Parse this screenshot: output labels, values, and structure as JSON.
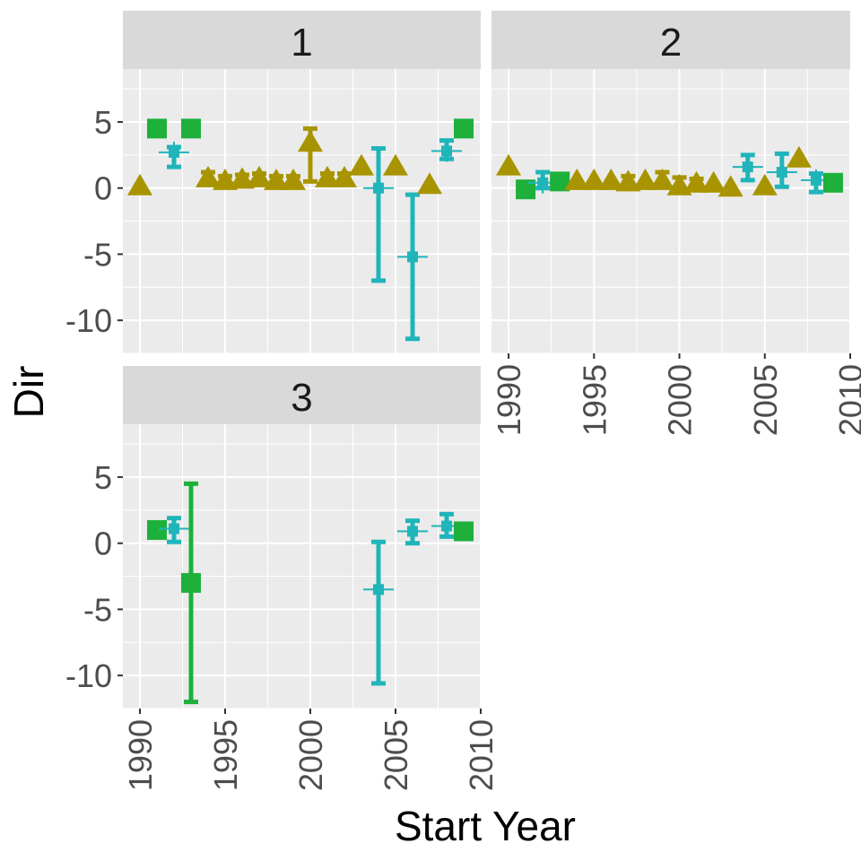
{
  "chart_data": {
    "type": "scatter",
    "subtype": "faceted point-range plot",
    "xlabel": "Start Year",
    "ylabel": "Dir",
    "xlim": [
      1989,
      2010
    ],
    "ylim": [
      -12.5,
      9
    ],
    "x_ticks": [
      1990,
      1995,
      2000,
      2005,
      2010
    ],
    "y_ticks": [
      5,
      0,
      -5,
      -10
    ],
    "grid": true,
    "shared_axes": true,
    "colors": {
      "triangle": "#A89400",
      "cross": "#1FB5BA",
      "square": "#1DB03B"
    },
    "panels": [
      {
        "strip_label": "1",
        "points": [
          {
            "x": 1990,
            "y": 0.2,
            "shape": "triangle"
          },
          {
            "x": 1991,
            "y": 4.5,
            "shape": "square"
          },
          {
            "x": 1992,
            "y": 2.7,
            "ymin": 1.6,
            "ymax": 3.1,
            "shape": "cross"
          },
          {
            "x": 1993,
            "y": 4.5,
            "shape": "square"
          },
          {
            "x": 1994,
            "y": 0.8,
            "ymin": 0.4,
            "ymax": 1.2,
            "shape": "triangle"
          },
          {
            "x": 1995,
            "y": 0.6,
            "ymin": 0.3,
            "ymax": 0.9,
            "shape": "triangle"
          },
          {
            "x": 1996,
            "y": 0.7,
            "ymin": 0.4,
            "ymax": 1.0,
            "shape": "triangle"
          },
          {
            "x": 1997,
            "y": 0.8,
            "ymin": 0.5,
            "ymax": 1.1,
            "shape": "triangle"
          },
          {
            "x": 1998,
            "y": 0.6,
            "ymin": 0.3,
            "ymax": 0.9,
            "shape": "triangle"
          },
          {
            "x": 1999,
            "y": 0.6,
            "ymin": 0.3,
            "ymax": 0.9,
            "shape": "triangle"
          },
          {
            "x": 2000,
            "y": 3.5,
            "ymin": 0.5,
            "ymax": 4.5,
            "shape": "triangle"
          },
          {
            "x": 2001,
            "y": 0.8,
            "ymin": 0.5,
            "ymax": 1.1,
            "shape": "triangle"
          },
          {
            "x": 2002,
            "y": 0.8,
            "ymin": 0.5,
            "ymax": 1.1,
            "shape": "triangle"
          },
          {
            "x": 2003,
            "y": 1.7,
            "shape": "triangle"
          },
          {
            "x": 2004,
            "y": 0.0,
            "ymin": -7.0,
            "ymax": 3.0,
            "shape": "cross"
          },
          {
            "x": 2005,
            "y": 1.7,
            "shape": "triangle"
          },
          {
            "x": 2006,
            "y": -5.2,
            "ymin": -11.4,
            "ymax": -0.5,
            "shape": "cross"
          },
          {
            "x": 2007,
            "y": 0.3,
            "shape": "triangle"
          },
          {
            "x": 2008,
            "y": 2.8,
            "ymin": 2.2,
            "ymax": 3.6,
            "shape": "cross"
          },
          {
            "x": 2009,
            "y": 4.5,
            "shape": "square"
          }
        ]
      },
      {
        "strip_label": "2",
        "points": [
          {
            "x": 1990,
            "y": 1.7,
            "shape": "triangle"
          },
          {
            "x": 1991,
            "y": -0.1,
            "ymin": -0.5,
            "ymax": 0.3,
            "shape": "square"
          },
          {
            "x": 1992,
            "y": 0.4,
            "ymin": 0.0,
            "ymax": 1.2,
            "shape": "cross"
          },
          {
            "x": 1993,
            "y": 0.5,
            "shape": "square"
          },
          {
            "x": 1994,
            "y": 0.6,
            "shape": "triangle"
          },
          {
            "x": 1995,
            "y": 0.6,
            "shape": "triangle"
          },
          {
            "x": 1996,
            "y": 0.6,
            "shape": "triangle"
          },
          {
            "x": 1997,
            "y": 0.5,
            "ymin": 0.1,
            "ymax": 0.9,
            "shape": "triangle"
          },
          {
            "x": 1998,
            "y": 0.6,
            "shape": "triangle"
          },
          {
            "x": 1999,
            "y": 0.6,
            "ymin": 0.1,
            "ymax": 1.2,
            "shape": "triangle"
          },
          {
            "x": 2000,
            "y": 0.2,
            "ymin": -0.3,
            "ymax": 0.8,
            "shape": "triangle"
          },
          {
            "x": 2001,
            "y": 0.4,
            "ymin": 0.1,
            "ymax": 0.7,
            "shape": "triangle"
          },
          {
            "x": 2002,
            "y": 0.4,
            "shape": "triangle"
          },
          {
            "x": 2003,
            "y": 0.1,
            "shape": "triangle"
          },
          {
            "x": 2004,
            "y": 1.6,
            "ymin": 0.6,
            "ymax": 2.5,
            "shape": "cross"
          },
          {
            "x": 2005,
            "y": 0.2,
            "shape": "triangle"
          },
          {
            "x": 2006,
            "y": 1.2,
            "ymin": 0.1,
            "ymax": 2.6,
            "shape": "cross"
          },
          {
            "x": 2007,
            "y": 2.3,
            "shape": "triangle"
          },
          {
            "x": 2008,
            "y": 0.6,
            "ymin": -0.3,
            "ymax": 1.1,
            "shape": "cross"
          },
          {
            "x": 2009,
            "y": 0.4,
            "shape": "square"
          }
        ]
      },
      {
        "strip_label": "3",
        "points": [
          {
            "x": 1991,
            "y": 1.0,
            "shape": "square"
          },
          {
            "x": 1992,
            "y": 1.1,
            "ymin": 0.1,
            "ymax": 1.9,
            "shape": "cross"
          },
          {
            "x": 1993,
            "y": -3.0,
            "ymin": -12.0,
            "ymax": 4.5,
            "shape": "square"
          },
          {
            "x": 2004,
            "y": -3.5,
            "ymin": -10.6,
            "ymax": 0.1,
            "shape": "cross"
          },
          {
            "x": 2006,
            "y": 0.9,
            "ymin": 0.0,
            "ymax": 1.7,
            "shape": "cross"
          },
          {
            "x": 2008,
            "y": 1.3,
            "ymin": 0.5,
            "ymax": 2.2,
            "shape": "cross"
          },
          {
            "x": 2009,
            "y": 0.9,
            "shape": "square"
          }
        ]
      }
    ]
  }
}
